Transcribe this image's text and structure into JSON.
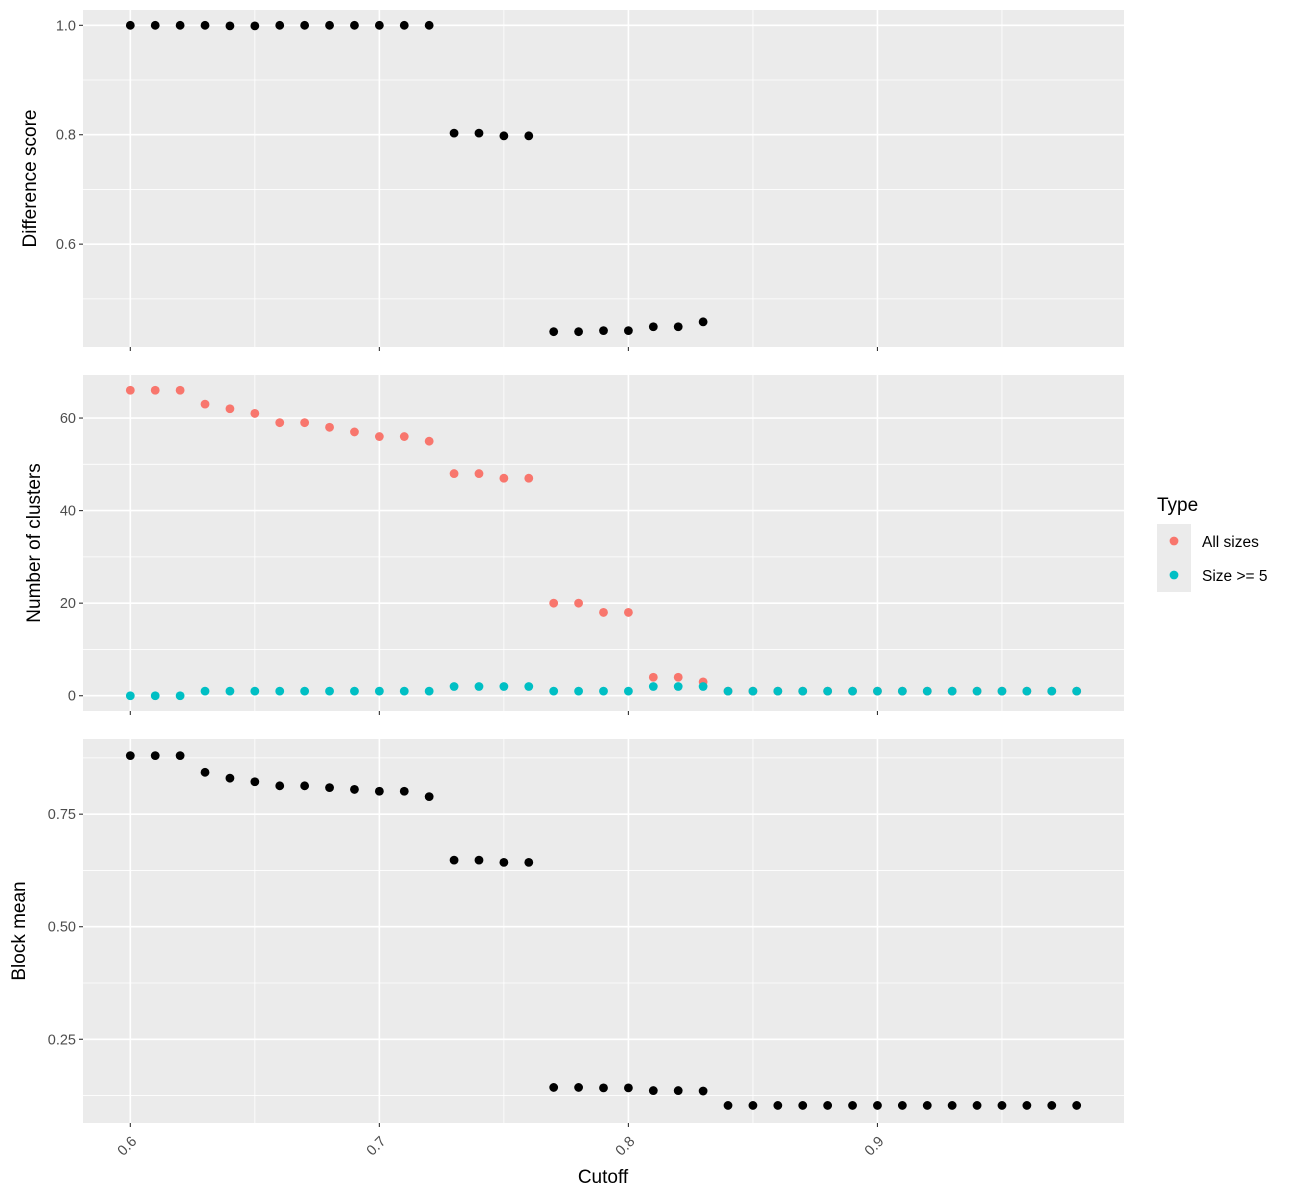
{
  "chart_data": {
    "type": "scatter",
    "xlabel": "Cutoff",
    "x_ticks": [
      "0.6",
      "0.7",
      "0.8",
      "0.9"
    ],
    "xlim": [
      0.581,
      0.999
    ],
    "x": [
      0.6,
      0.61,
      0.62,
      0.63,
      0.64,
      0.65,
      0.66,
      0.67,
      0.68,
      0.69,
      0.7,
      0.71,
      0.72,
      0.73,
      0.74,
      0.75,
      0.76,
      0.77,
      0.78,
      0.79,
      0.8,
      0.81,
      0.82,
      0.83,
      0.84,
      0.85,
      0.86,
      0.87,
      0.88,
      0.89,
      0.9,
      0.91,
      0.92,
      0.93,
      0.94,
      0.95,
      0.96,
      0.97,
      0.98
    ],
    "grid": true,
    "legend": {
      "title": "Type",
      "position": "right",
      "entries": [
        {
          "label": "All sizes",
          "color": "#F8766D"
        },
        {
          "label": "Size >= 5",
          "color": "#00BFC4"
        }
      ]
    },
    "panels": [
      {
        "ylabel": "Difference score",
        "ylim": [
          0.412,
          1.028
        ],
        "y_ticks": [
          "0.6",
          "0.8",
          "1.0"
        ],
        "y_tick_values": [
          0.6,
          0.8,
          1.0
        ],
        "series": [
          {
            "color": "#000000",
            "values": [
              1.0,
              1.0,
              1.0,
              1.0,
              0.999,
              0.999,
              1.0,
              1.0,
              1.0,
              1.0,
              1.0,
              1.0,
              1.0,
              0.803,
              0.803,
              0.798,
              0.798,
              0.44,
              0.44,
              0.442,
              0.442,
              0.449,
              0.449,
              0.458
            ]
          }
        ]
      },
      {
        "ylabel": "Number of clusters",
        "ylim": [
          -3.3,
          69.3
        ],
        "y_ticks": [
          "0",
          "20",
          "40",
          "60"
        ],
        "y_tick_values": [
          0,
          20,
          40,
          60
        ],
        "series": [
          {
            "name": "All sizes",
            "color": "#F8766D",
            "values": [
              66,
              66,
              66,
              63,
              62,
              61,
              59,
              59,
              58,
              57,
              56,
              56,
              55,
              48,
              48,
              47,
              47,
              20,
              20,
              18,
              18,
              4,
              4,
              3,
              1,
              1,
              1,
              1,
              1,
              1,
              1,
              1,
              1,
              1,
              1,
              1,
              1,
              1,
              1
            ]
          },
          {
            "name": "Size >= 5",
            "color": "#00BFC4",
            "values": [
              0,
              0,
              0,
              1,
              1,
              1,
              1,
              1,
              1,
              1,
              1,
              1,
              1,
              2,
              2,
              2,
              2,
              1,
              1,
              1,
              1,
              2,
              2,
              2,
              1,
              1,
              1,
              1,
              1,
              1,
              1,
              1,
              1,
              1,
              1,
              1,
              1,
              1,
              1
            ]
          }
        ]
      },
      {
        "ylabel": "Block mean",
        "ylim": [
          0.064,
          0.917
        ],
        "y_ticks": [
          "0.25",
          "0.50",
          "0.75"
        ],
        "y_tick_values": [
          0.25,
          0.5,
          0.75
        ],
        "series": [
          {
            "color": "#000000",
            "values": [
              0.88,
              0.88,
              0.88,
              0.843,
              0.83,
              0.822,
              0.813,
              0.813,
              0.809,
              0.805,
              0.801,
              0.801,
              0.789,
              0.648,
              0.648,
              0.643,
              0.643,
              0.143,
              0.143,
              0.142,
              0.142,
              0.136,
              0.136,
              0.135,
              0.103,
              0.103,
              0.103,
              0.103,
              0.103,
              0.103,
              0.103,
              0.103,
              0.103,
              0.103,
              0.103,
              0.103,
              0.103,
              0.103,
              0.103
            ]
          }
        ]
      }
    ]
  }
}
